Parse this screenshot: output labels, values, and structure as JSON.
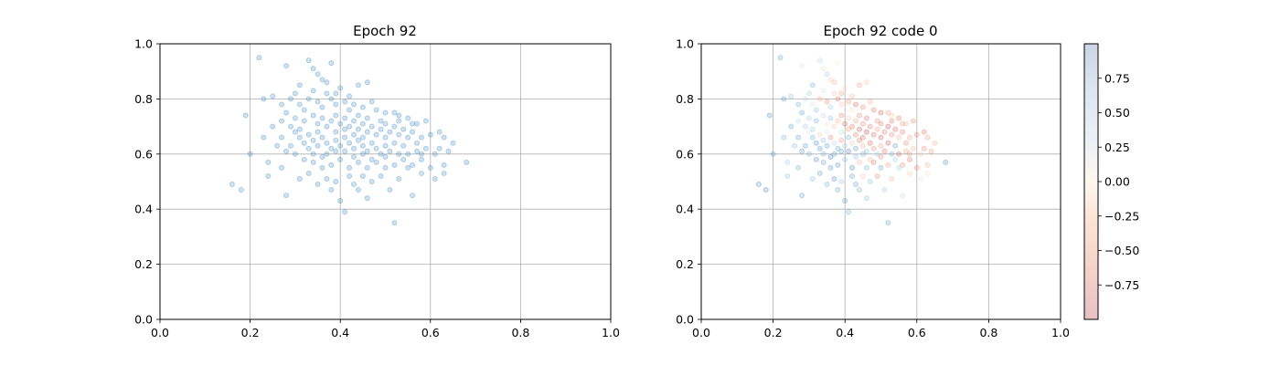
{
  "chart_data": [
    {
      "type": "scatter",
      "title": "Epoch 92",
      "xlim": [
        0.0,
        1.0
      ],
      "ylim": [
        0.0,
        1.0
      ],
      "xticks": [
        "0.0",
        "0.2",
        "0.4",
        "0.6",
        "0.8",
        "1.0"
      ],
      "yticks": [
        "0.0",
        "0.2",
        "0.4",
        "0.6",
        "0.8",
        "1.0"
      ],
      "grid": true,
      "marker_color": "#1f77b4",
      "marker_alpha": 0.22
    },
    {
      "type": "scatter",
      "title": "Epoch 92 code 0",
      "xlim": [
        0.0,
        1.0
      ],
      "ylim": [
        0.0,
        1.0
      ],
      "xticks": [
        "0.0",
        "0.2",
        "0.4",
        "0.6",
        "0.8",
        "1.0"
      ],
      "yticks": [
        "0.0",
        "0.2",
        "0.4",
        "0.6",
        "0.8",
        "1.0"
      ],
      "grid": true,
      "colormap": "RdBu",
      "marker_alpha": 0.22,
      "colorbar": {
        "range": [
          -1.0,
          1.0
        ],
        "ticks": [
          0.75,
          0.5,
          0.25,
          0.0,
          -0.25,
          -0.5,
          -0.75
        ],
        "tick_labels": [
          "0.75",
          "0.50",
          "0.25",
          "0.00",
          "−0.25",
          "−0.50",
          "−0.75"
        ]
      }
    }
  ],
  "points": [
    {
      "x": 0.22,
      "y": 0.95,
      "c": 0.6
    },
    {
      "x": 0.33,
      "y": 0.94,
      "c": 0.2
    },
    {
      "x": 0.28,
      "y": 0.92,
      "c": 0.1
    },
    {
      "x": 0.34,
      "y": 0.91,
      "c": -0.1
    },
    {
      "x": 0.35,
      "y": 0.89,
      "c": 0.3
    },
    {
      "x": 0.38,
      "y": 0.93,
      "c": 0.0
    },
    {
      "x": 0.36,
      "y": 0.87,
      "c": -0.2
    },
    {
      "x": 0.31,
      "y": 0.85,
      "c": 0.5
    },
    {
      "x": 0.37,
      "y": 0.86,
      "c": -0.3
    },
    {
      "x": 0.4,
      "y": 0.84,
      "c": -0.1
    },
    {
      "x": 0.44,
      "y": 0.85,
      "c": -0.4
    },
    {
      "x": 0.46,
      "y": 0.86,
      "c": -0.2
    },
    {
      "x": 0.25,
      "y": 0.81,
      "c": 0.4
    },
    {
      "x": 0.23,
      "y": 0.8,
      "c": 0.7
    },
    {
      "x": 0.19,
      "y": 0.74,
      "c": 0.8
    },
    {
      "x": 0.29,
      "y": 0.8,
      "c": 0.2
    },
    {
      "x": 0.31,
      "y": 0.78,
      "c": 0.1
    },
    {
      "x": 0.33,
      "y": 0.8,
      "c": -0.3
    },
    {
      "x": 0.35,
      "y": 0.79,
      "c": -0.5
    },
    {
      "x": 0.36,
      "y": 0.77,
      "c": 0.3
    },
    {
      "x": 0.38,
      "y": 0.8,
      "c": -0.6
    },
    {
      "x": 0.39,
      "y": 0.78,
      "c": -0.2
    },
    {
      "x": 0.41,
      "y": 0.79,
      "c": -0.4
    },
    {
      "x": 0.42,
      "y": 0.76,
      "c": -0.1
    },
    {
      "x": 0.43,
      "y": 0.78,
      "c": -0.7
    },
    {
      "x": 0.45,
      "y": 0.77,
      "c": -0.5
    },
    {
      "x": 0.47,
      "y": 0.79,
      "c": -0.3
    },
    {
      "x": 0.48,
      "y": 0.76,
      "c": -0.6
    },
    {
      "x": 0.5,
      "y": 0.75,
      "c": -0.8
    },
    {
      "x": 0.52,
      "y": 0.75,
      "c": -0.4
    },
    {
      "x": 0.53,
      "y": 0.74,
      "c": -0.2
    },
    {
      "x": 0.55,
      "y": 0.73,
      "c": -0.6
    },
    {
      "x": 0.57,
      "y": 0.71,
      "c": -0.3
    },
    {
      "x": 0.59,
      "y": 0.72,
      "c": -0.5
    },
    {
      "x": 0.28,
      "y": 0.75,
      "c": 0.6
    },
    {
      "x": 0.3,
      "y": 0.73,
      "c": 0.3
    },
    {
      "x": 0.32,
      "y": 0.72,
      "c": 0.5
    },
    {
      "x": 0.34,
      "y": 0.74,
      "c": 0.2
    },
    {
      "x": 0.35,
      "y": 0.71,
      "c": -0.1
    },
    {
      "x": 0.36,
      "y": 0.73,
      "c": 0.4
    },
    {
      "x": 0.38,
      "y": 0.72,
      "c": -0.3
    },
    {
      "x": 0.39,
      "y": 0.74,
      "c": -0.5
    },
    {
      "x": 0.4,
      "y": 0.71,
      "c": -0.7
    },
    {
      "x": 0.41,
      "y": 0.73,
      "c": -0.2
    },
    {
      "x": 0.42,
      "y": 0.7,
      "c": -0.6
    },
    {
      "x": 0.43,
      "y": 0.72,
      "c": -0.4
    },
    {
      "x": 0.44,
      "y": 0.69,
      "c": -0.8
    },
    {
      "x": 0.45,
      "y": 0.71,
      "c": -0.5
    },
    {
      "x": 0.46,
      "y": 0.68,
      "c": -0.9
    },
    {
      "x": 0.47,
      "y": 0.7,
      "c": -0.6
    },
    {
      "x": 0.48,
      "y": 0.67,
      "c": -0.7
    },
    {
      "x": 0.49,
      "y": 0.69,
      "c": -0.4
    },
    {
      "x": 0.5,
      "y": 0.66,
      "c": -0.8
    },
    {
      "x": 0.51,
      "y": 0.68,
      "c": -0.6
    },
    {
      "x": 0.52,
      "y": 0.7,
      "c": -0.9
    },
    {
      "x": 0.53,
      "y": 0.67,
      "c": -0.5
    },
    {
      "x": 0.54,
      "y": 0.69,
      "c": -0.7
    },
    {
      "x": 0.55,
      "y": 0.66,
      "c": -0.3
    },
    {
      "x": 0.56,
      "y": 0.68,
      "c": -0.6
    },
    {
      "x": 0.58,
      "y": 0.66,
      "c": -0.4
    },
    {
      "x": 0.6,
      "y": 0.67,
      "c": -0.5
    },
    {
      "x": 0.62,
      "y": 0.68,
      "c": -0.6
    },
    {
      "x": 0.63,
      "y": 0.66,
      "c": -0.4
    },
    {
      "x": 0.65,
      "y": 0.64,
      "c": -0.3
    },
    {
      "x": 0.62,
      "y": 0.62,
      "c": -0.5
    },
    {
      "x": 0.61,
      "y": 0.6,
      "c": -0.2
    },
    {
      "x": 0.64,
      "y": 0.61,
      "c": -0.4
    },
    {
      "x": 0.68,
      "y": 0.57,
      "c": 0.8
    },
    {
      "x": 0.63,
      "y": 0.56,
      "c": -0.3
    },
    {
      "x": 0.6,
      "y": 0.55,
      "c": -0.5
    },
    {
      "x": 0.58,
      "y": 0.58,
      "c": -0.6
    },
    {
      "x": 0.57,
      "y": 0.61,
      "c": -0.4
    },
    {
      "x": 0.55,
      "y": 0.6,
      "c": -0.7
    },
    {
      "x": 0.54,
      "y": 0.63,
      "c": 0.6
    },
    {
      "x": 0.53,
      "y": 0.6,
      "c": 0.5
    },
    {
      "x": 0.52,
      "y": 0.64,
      "c": -0.8
    },
    {
      "x": 0.51,
      "y": 0.61,
      "c": -0.6
    },
    {
      "x": 0.5,
      "y": 0.63,
      "c": -0.4
    },
    {
      "x": 0.49,
      "y": 0.6,
      "c": 0.3
    },
    {
      "x": 0.48,
      "y": 0.62,
      "c": -0.5
    },
    {
      "x": 0.47,
      "y": 0.64,
      "c": -0.7
    },
    {
      "x": 0.46,
      "y": 0.61,
      "c": 0.4
    },
    {
      "x": 0.45,
      "y": 0.63,
      "c": -0.3
    },
    {
      "x": 0.44,
      "y": 0.65,
      "c": -0.6
    },
    {
      "x": 0.43,
      "y": 0.62,
      "c": 0.7
    },
    {
      "x": 0.42,
      "y": 0.64,
      "c": -0.2
    },
    {
      "x": 0.41,
      "y": 0.66,
      "c": 0.5
    },
    {
      "x": 0.4,
      "y": 0.63,
      "c": 0.3
    },
    {
      "x": 0.39,
      "y": 0.65,
      "c": -0.4
    },
    {
      "x": 0.38,
      "y": 0.62,
      "c": 0.6
    },
    {
      "x": 0.37,
      "y": 0.64,
      "c": 0.2
    },
    {
      "x": 0.36,
      "y": 0.66,
      "c": -0.5
    },
    {
      "x": 0.35,
      "y": 0.63,
      "c": 0.7
    },
    {
      "x": 0.34,
      "y": 0.65,
      "c": 0.4
    },
    {
      "x": 0.33,
      "y": 0.67,
      "c": -0.2
    },
    {
      "x": 0.32,
      "y": 0.64,
      "c": 0.8
    },
    {
      "x": 0.31,
      "y": 0.66,
      "c": 0.5
    },
    {
      "x": 0.3,
      "y": 0.68,
      "c": 0.1
    },
    {
      "x": 0.29,
      "y": 0.7,
      "c": 0.3
    },
    {
      "x": 0.27,
      "y": 0.66,
      "c": 0.6
    },
    {
      "x": 0.26,
      "y": 0.63,
      "c": 0.4
    },
    {
      "x": 0.28,
      "y": 0.61,
      "c": 0.7
    },
    {
      "x": 0.3,
      "y": 0.6,
      "c": 0.5
    },
    {
      "x": 0.32,
      "y": 0.58,
      "c": 0.8
    },
    {
      "x": 0.34,
      "y": 0.57,
      "c": 0.6
    },
    {
      "x": 0.36,
      "y": 0.59,
      "c": 0.9
    },
    {
      "x": 0.38,
      "y": 0.56,
      "c": 0.7
    },
    {
      "x": 0.4,
      "y": 0.58,
      "c": 0.4
    },
    {
      "x": 0.42,
      "y": 0.55,
      "c": 0.8
    },
    {
      "x": 0.44,
      "y": 0.57,
      "c": -0.3
    },
    {
      "x": 0.46,
      "y": 0.55,
      "c": 0.5
    },
    {
      "x": 0.48,
      "y": 0.57,
      "c": -0.6
    },
    {
      "x": 0.5,
      "y": 0.55,
      "c": 0.6
    },
    {
      "x": 0.52,
      "y": 0.56,
      "c": -0.4
    },
    {
      "x": 0.54,
      "y": 0.58,
      "c": 0.3
    },
    {
      "x": 0.56,
      "y": 0.56,
      "c": -0.5
    },
    {
      "x": 0.2,
      "y": 0.6,
      "c": 0.7
    },
    {
      "x": 0.24,
      "y": 0.57,
      "c": 0.3
    },
    {
      "x": 0.27,
      "y": 0.55,
      "c": 0.5
    },
    {
      "x": 0.24,
      "y": 0.52,
      "c": 0.4
    },
    {
      "x": 0.16,
      "y": 0.49,
      "c": 0.8
    },
    {
      "x": 0.18,
      "y": 0.47,
      "c": 0.9
    },
    {
      "x": 0.28,
      "y": 0.45,
      "c": 0.6
    },
    {
      "x": 0.31,
      "y": 0.51,
      "c": 0.4
    },
    {
      "x": 0.33,
      "y": 0.53,
      "c": 0.7
    },
    {
      "x": 0.35,
      "y": 0.49,
      "c": 0.5
    },
    {
      "x": 0.37,
      "y": 0.51,
      "c": 0.8
    },
    {
      "x": 0.38,
      "y": 0.47,
      "c": 0.6
    },
    {
      "x": 0.39,
      "y": 0.5,
      "c": 0.3
    },
    {
      "x": 0.4,
      "y": 0.43,
      "c": 0.7
    },
    {
      "x": 0.41,
      "y": 0.39,
      "c": 0.5
    },
    {
      "x": 0.43,
      "y": 0.49,
      "c": 0.6
    },
    {
      "x": 0.45,
      "y": 0.52,
      "c": -0.2
    },
    {
      "x": 0.47,
      "y": 0.5,
      "c": 0.4
    },
    {
      "x": 0.49,
      "y": 0.52,
      "c": -0.5
    },
    {
      "x": 0.51,
      "y": 0.47,
      "c": 0.3
    },
    {
      "x": 0.53,
      "y": 0.51,
      "c": -0.3
    },
    {
      "x": 0.56,
      "y": 0.45,
      "c": 0.2
    },
    {
      "x": 0.52,
      "y": 0.35,
      "c": 0.6
    },
    {
      "x": 0.58,
      "y": 0.53,
      "c": -0.2
    },
    {
      "x": 0.61,
      "y": 0.51,
      "c": 0.1
    },
    {
      "x": 0.63,
      "y": 0.53,
      "c": -0.1
    },
    {
      "x": 0.33,
      "y": 0.62,
      "c": 0.8
    },
    {
      "x": 0.37,
      "y": 0.6,
      "c": 0.6
    },
    {
      "x": 0.41,
      "y": 0.61,
      "c": 0.9
    },
    {
      "x": 0.45,
      "y": 0.66,
      "c": -0.7
    },
    {
      "x": 0.49,
      "y": 0.72,
      "c": -0.5
    },
    {
      "x": 0.53,
      "y": 0.72,
      "c": -0.6
    },
    {
      "x": 0.57,
      "y": 0.64,
      "c": -0.5
    },
    {
      "x": 0.59,
      "y": 0.62,
      "c": -0.3
    },
    {
      "x": 0.34,
      "y": 0.83,
      "c": 0.1
    },
    {
      "x": 0.37,
      "y": 0.82,
      "c": -0.2
    },
    {
      "x": 0.39,
      "y": 0.82,
      "c": -0.4
    },
    {
      "x": 0.42,
      "y": 0.81,
      "c": -0.3
    },
    {
      "x": 0.3,
      "y": 0.82,
      "c": 0.3
    },
    {
      "x": 0.27,
      "y": 0.78,
      "c": 0.5
    },
    {
      "x": 0.32,
      "y": 0.76,
      "c": 0.4
    },
    {
      "x": 0.44,
      "y": 0.74,
      "c": -0.5
    },
    {
      "x": 0.46,
      "y": 0.73,
      "c": -0.7
    },
    {
      "x": 0.5,
      "y": 0.71,
      "c": -0.6
    },
    {
      "x": 0.56,
      "y": 0.71,
      "c": -0.4
    },
    {
      "x": 0.25,
      "y": 0.7,
      "c": 0.6
    },
    {
      "x": 0.27,
      "y": 0.72,
      "c": 0.2
    },
    {
      "x": 0.23,
      "y": 0.66,
      "c": 0.5
    },
    {
      "x": 0.35,
      "y": 0.68,
      "c": 0.1
    },
    {
      "x": 0.37,
      "y": 0.7,
      "c": -0.2
    },
    {
      "x": 0.39,
      "y": 0.68,
      "c": 0.2
    },
    {
      "x": 0.41,
      "y": 0.69,
      "c": -0.4
    },
    {
      "x": 0.43,
      "y": 0.67,
      "c": -0.6
    },
    {
      "x": 0.45,
      "y": 0.6,
      "c": 0.5
    },
    {
      "x": 0.47,
      "y": 0.58,
      "c": -0.3
    },
    {
      "x": 0.43,
      "y": 0.59,
      "c": 0.4
    },
    {
      "x": 0.39,
      "y": 0.61,
      "c": 0.6
    },
    {
      "x": 0.36,
      "y": 0.55,
      "c": 0.7
    },
    {
      "x": 0.34,
      "y": 0.6,
      "c": 0.5
    },
    {
      "x": 0.29,
      "y": 0.63,
      "c": 0.6
    },
    {
      "x": 0.31,
      "y": 0.69,
      "c": 0.3
    },
    {
      "x": 0.42,
      "y": 0.52,
      "c": 0.6
    },
    {
      "x": 0.44,
      "y": 0.47,
      "c": 0.5
    },
    {
      "x": 0.46,
      "y": 0.44,
      "c": 0.4
    },
    {
      "x": 0.5,
      "y": 0.59,
      "c": -0.5
    },
    {
      "x": 0.55,
      "y": 0.55,
      "c": 0.3
    },
    {
      "x": 0.58,
      "y": 0.6,
      "c": -0.4
    }
  ]
}
